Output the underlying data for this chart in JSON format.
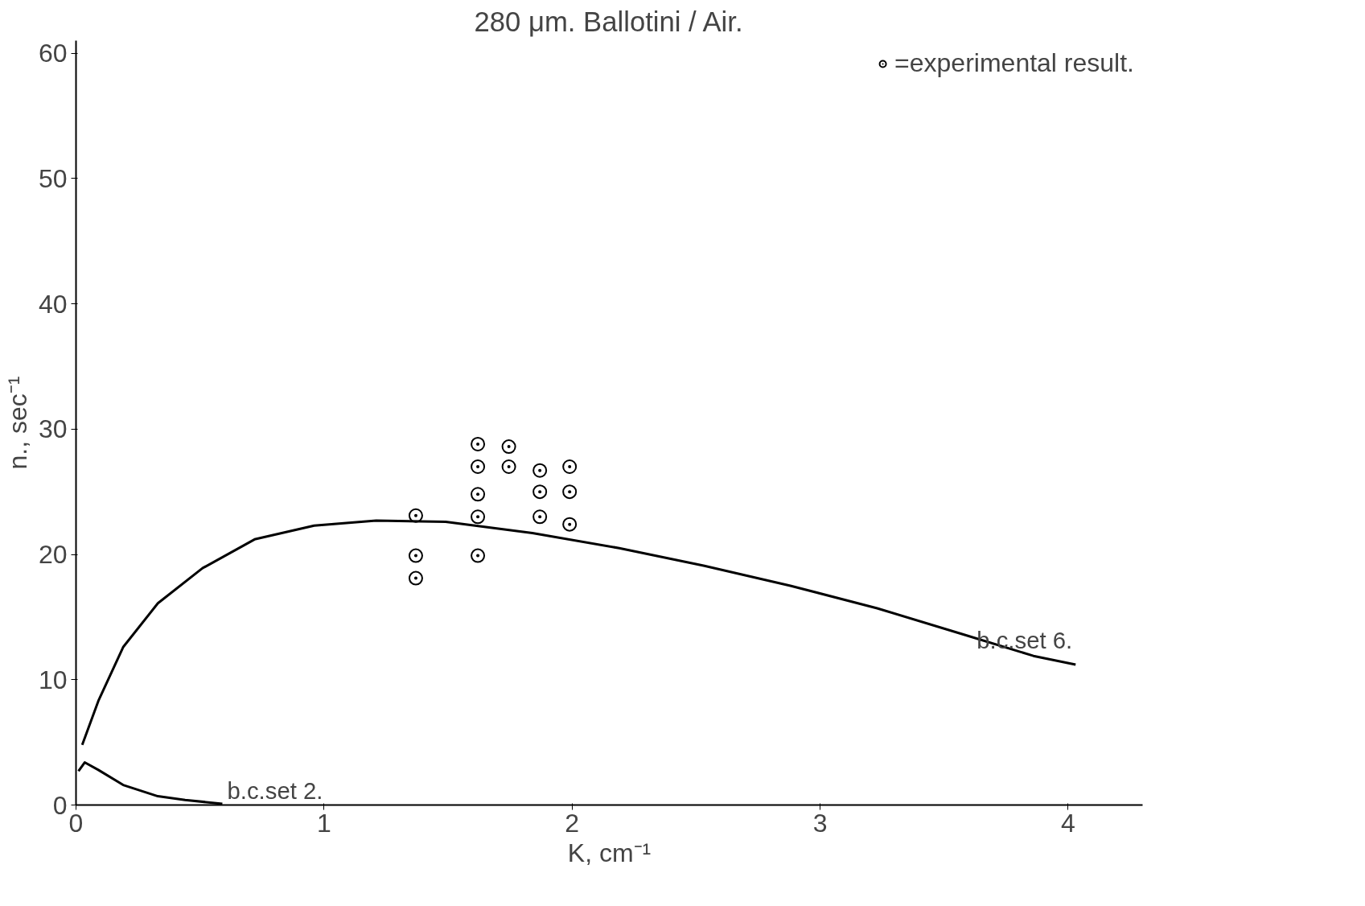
{
  "chart_data": {
    "type": "line",
    "title": "280 μm. Ballotini / Air.",
    "xlabel": "K, cm⁻¹",
    "ylabel": "n., sec⁻¹",
    "xlim": [
      0,
      4.3
    ],
    "ylim": [
      0,
      61
    ],
    "xticks": [
      0,
      1,
      2,
      3,
      4
    ],
    "yticks": [
      0,
      10,
      20,
      30,
      40,
      50,
      60
    ],
    "grid": false,
    "legend": "top right",
    "series": [
      {
        "name": "b.c.set 6.",
        "color": "#000000",
        "marker": "none",
        "x": [
          0.025,
          0.09,
          0.19,
          0.33,
          0.51,
          0.72,
          0.96,
          1.21,
          1.49,
          1.84,
          2.19,
          2.53,
          2.88,
          3.23,
          3.58,
          3.86,
          4.03
        ],
        "values": [
          4.8,
          8.3,
          12.6,
          16.1,
          18.9,
          21.2,
          22.3,
          22.7,
          22.6,
          21.7,
          20.5,
          19.1,
          17.5,
          15.7,
          13.6,
          11.9,
          11.2
        ]
      },
      {
        "name": "b.c.set 2.",
        "color": "#000000",
        "marker": "none",
        "x": [
          0.01,
          0.035,
          0.09,
          0.19,
          0.33,
          0.44,
          0.59
        ],
        "values": [
          2.7,
          3.4,
          2.8,
          1.6,
          0.7,
          0.4,
          0.1
        ]
      },
      {
        "name": "=experimental result.",
        "color": "#000000",
        "type": "scatter",
        "marker": "circle",
        "x": [
          1.37,
          1.37,
          1.37,
          1.62,
          1.62,
          1.62,
          1.62,
          1.62,
          1.745,
          1.745,
          1.87,
          1.87,
          1.87,
          1.99,
          1.99,
          1.99
        ],
        "values": [
          23.1,
          19.9,
          18.1,
          28.8,
          27.0,
          24.8,
          23.0,
          19.9,
          28.6,
          27.0,
          26.7,
          25.0,
          23.0,
          27.0,
          25.0,
          22.4
        ]
      }
    ]
  }
}
